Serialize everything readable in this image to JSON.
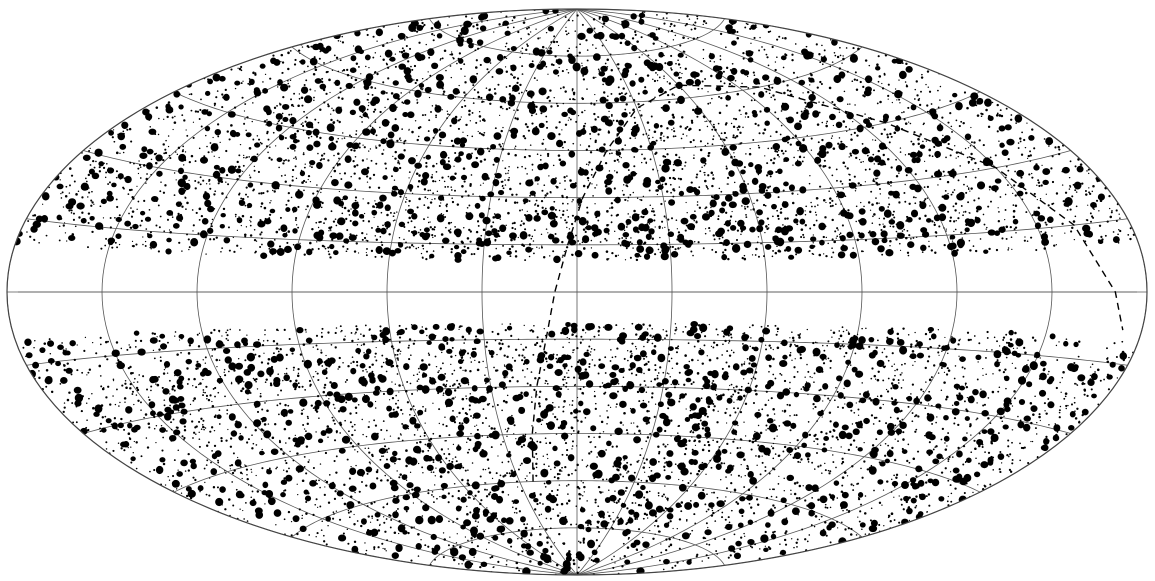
{
  "map": {
    "projection": "aitoff",
    "coordinate_system": "galactic",
    "center_longitude_deg": 0,
    "meridians_deg": [
      -180,
      -150,
      -120,
      -90,
      -60,
      -30,
      0,
      30,
      60,
      90,
      120,
      150,
      180
    ],
    "parallels_deg": [
      -75,
      -60,
      -45,
      -30,
      -15,
      0,
      15,
      30,
      45,
      60,
      75
    ],
    "masked_latitude_band_deg": [
      -10,
      10
    ],
    "colors": {
      "background": "#ffffff",
      "grid": "#555555",
      "outline": "#444444",
      "sources": "#000000",
      "dashed_curve": "#000000"
    },
    "sources": {
      "large": {
        "count": 1700,
        "seed": 271828,
        "symbol": "filled-dot"
      },
      "small": {
        "count": 7000,
        "seed": 314159,
        "symbol": "small-dot"
      },
      "excluded_latitude_band_deg": [
        -10,
        10
      ]
    },
    "dashed_curve": {
      "description_symbol": "dashed-line",
      "style": "dashed",
      "points_deg": [
        [
          -23,
          -60
        ],
        [
          -18,
          -45
        ],
        [
          -14,
          -30
        ],
        [
          -10,
          -15
        ],
        [
          -7,
          0
        ],
        [
          -3,
          15
        ],
        [
          2,
          30
        ],
        [
          12,
          45
        ],
        [
          30,
          58
        ],
        [
          60,
          64
        ],
        [
          100,
          60
        ],
        [
          130,
          45
        ],
        [
          150,
          30
        ],
        [
          162,
          15
        ],
        [
          170,
          0
        ],
        [
          174,
          -8
        ]
      ]
    }
  }
}
